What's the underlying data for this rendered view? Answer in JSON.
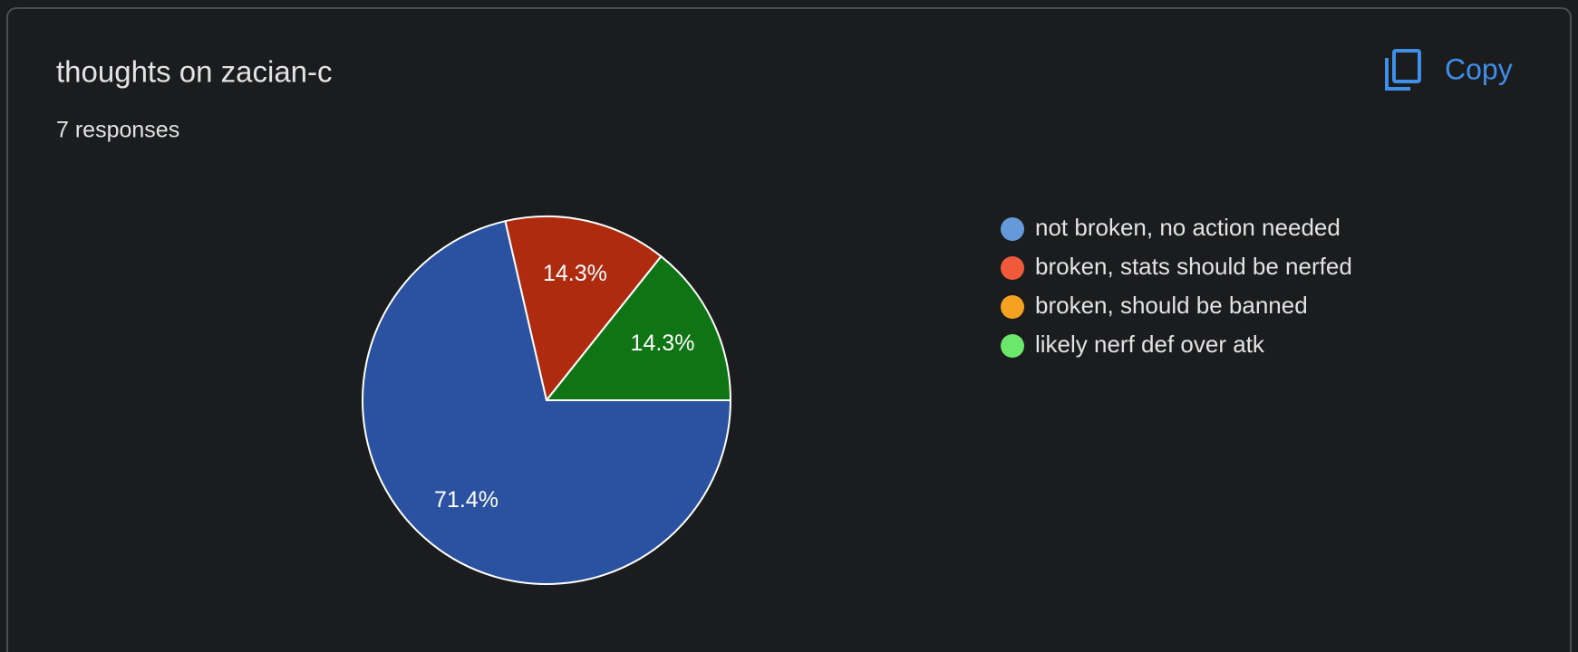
{
  "chart_data": {
    "type": "pie",
    "title": "thoughts on zacian-c",
    "subtitle": "7 responses",
    "button": "Copy",
    "categories": [
      "not broken, no action needed",
      "broken, stats should be nerfed",
      "broken, should be banned",
      "likely nerf def over atk"
    ],
    "values": [
      71.4,
      14.3,
      0,
      14.3
    ],
    "value_labels": [
      "71.4%",
      "14.3%",
      null,
      "14.3%"
    ],
    "colors": [
      "#2a52a0",
      "#ae2b0f",
      "#e69020",
      "#0f7514"
    ],
    "legend_colors": [
      "#6699d8",
      "#ef5a3a",
      "#f5a122",
      "#6be86c"
    ]
  }
}
